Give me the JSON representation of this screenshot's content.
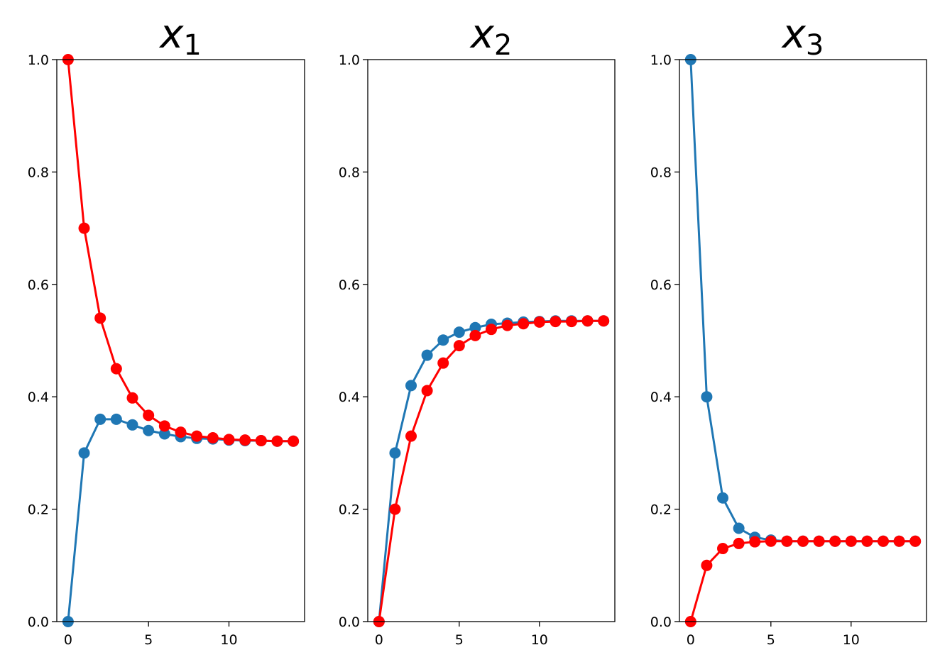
{
  "chart_data": [
    {
      "type": "line",
      "title_base": "x",
      "title_subscript": "1",
      "xlabel": "",
      "ylabel": "",
      "xlim": [
        -0.7,
        14.7
      ],
      "ylim": [
        0,
        1
      ],
      "xticks": [
        0,
        5,
        10
      ],
      "yticks": [
        0.0,
        0.2,
        0.4,
        0.6,
        0.8,
        1.0
      ],
      "ytick_labels": [
        "0.0",
        "0.2",
        "0.4",
        "0.6",
        "0.8",
        "1.0"
      ],
      "x": [
        0,
        1,
        2,
        3,
        4,
        5,
        6,
        7,
        8,
        9,
        10,
        11,
        12,
        13,
        14
      ],
      "series": [
        {
          "color": "#1f77b4",
          "values": [
            0.0,
            0.3,
            0.36,
            0.36,
            0.35,
            0.34,
            0.334,
            0.329,
            0.326,
            0.325,
            0.323,
            0.322,
            0.322,
            0.321,
            0.321
          ]
        },
        {
          "color": "#ff0000",
          "values": [
            1.0,
            0.7,
            0.54,
            0.45,
            0.398,
            0.367,
            0.348,
            0.337,
            0.33,
            0.327,
            0.324,
            0.323,
            0.322,
            0.321,
            0.321
          ]
        }
      ]
    },
    {
      "type": "line",
      "title_base": "x",
      "title_subscript": "2",
      "xlabel": "",
      "ylabel": "",
      "xlim": [
        -0.7,
        14.7
      ],
      "ylim": [
        0,
        1
      ],
      "xticks": [
        0,
        5,
        10
      ],
      "yticks": [
        0.0,
        0.2,
        0.4,
        0.6,
        0.8,
        1.0
      ],
      "ytick_labels": [
        "0.0",
        "0.2",
        "0.4",
        "0.6",
        "0.8",
        "1.0"
      ],
      "x": [
        0,
        1,
        2,
        3,
        4,
        5,
        6,
        7,
        8,
        9,
        10,
        11,
        12,
        13,
        14
      ],
      "series": [
        {
          "color": "#1f77b4",
          "values": [
            0.0,
            0.3,
            0.42,
            0.474,
            0.501,
            0.515,
            0.523,
            0.529,
            0.531,
            0.533,
            0.534,
            0.535,
            0.535,
            0.535,
            0.535
          ]
        },
        {
          "color": "#ff0000",
          "values": [
            0.0,
            0.2,
            0.33,
            0.411,
            0.46,
            0.491,
            0.509,
            0.52,
            0.527,
            0.53,
            0.533,
            0.534,
            0.534,
            0.535,
            0.535
          ]
        }
      ]
    },
    {
      "type": "line",
      "title_base": "x",
      "title_subscript": "3",
      "xlabel": "",
      "ylabel": "",
      "xlim": [
        -0.7,
        14.7
      ],
      "ylim": [
        0,
        1
      ],
      "xticks": [
        0,
        5,
        10
      ],
      "yticks": [
        0.0,
        0.2,
        0.4,
        0.6,
        0.8,
        1.0
      ],
      "ytick_labels": [
        "0.0",
        "0.2",
        "0.4",
        "0.6",
        "0.8",
        "1.0"
      ],
      "x": [
        0,
        1,
        2,
        3,
        4,
        5,
        6,
        7,
        8,
        9,
        10,
        11,
        12,
        13,
        14
      ],
      "series": [
        {
          "color": "#1f77b4",
          "values": [
            1.0,
            0.4,
            0.22,
            0.166,
            0.15,
            0.145,
            0.143,
            0.143,
            0.143,
            0.143,
            0.143,
            0.143,
            0.143,
            0.143,
            0.143
          ]
        },
        {
          "color": "#ff0000",
          "values": [
            0.0,
            0.1,
            0.13,
            0.139,
            0.142,
            0.143,
            0.143,
            0.143,
            0.143,
            0.143,
            0.143,
            0.143,
            0.143,
            0.143,
            0.143
          ]
        }
      ]
    }
  ]
}
